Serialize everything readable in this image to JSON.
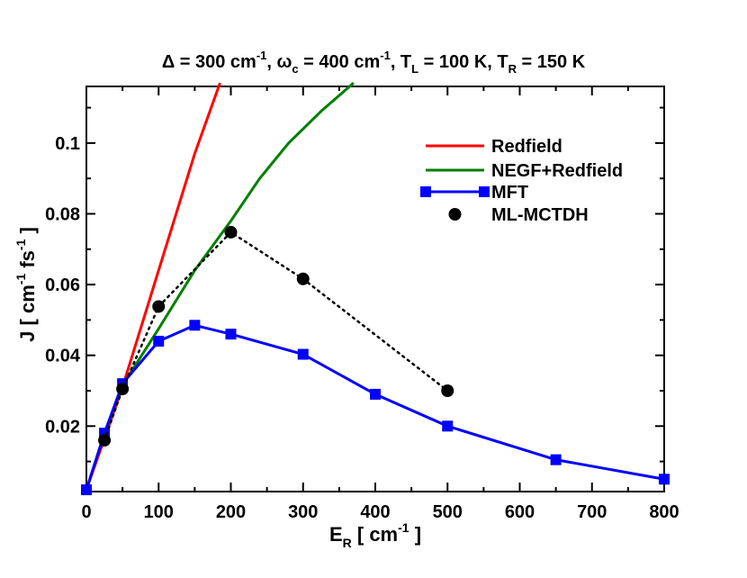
{
  "chart_data": {
    "type": "line",
    "title": {
      "delta": "Δ = 300 cm",
      "delta_exp": "-1",
      "omega": ", ω",
      "omega_sub": "c",
      "omega_val": " = 400 cm",
      "omega_exp": "-1",
      "tl": ", T",
      "tl_sub": "L",
      "tl_val": " = 100 K, T",
      "tr_sub": "R",
      "tr_val": " = 150 K"
    },
    "xlabel": {
      "base": "E",
      "sub": "R",
      "mid": " [ cm",
      "exp": "-1",
      "end": " ]"
    },
    "ylabel": {
      "base": "J [ cm",
      "exp1": "-1",
      "mid": " fs",
      "exp2": "-1",
      "end": " ]"
    },
    "xlim": [
      0,
      800
    ],
    "ylim": [
      0.0015,
      0.116
    ],
    "xticks": [
      "0",
      "100",
      "200",
      "300",
      "400",
      "500",
      "600",
      "700",
      "800"
    ],
    "yticks": [
      "0.02",
      "0.04",
      "0.06",
      "0.08",
      "0.1"
    ],
    "legend_position": "top-right",
    "series": [
      {
        "name": "Redfield",
        "color": "#ff0000",
        "style": "solid",
        "x": [
          0,
          50,
          100,
          150,
          185
        ],
        "y": [
          0.002,
          0.031,
          0.064,
          0.097,
          0.117
        ]
      },
      {
        "name": "NEGF+Redfield",
        "color": "#008000",
        "style": "solid",
        "x": [
          0,
          25,
          50,
          100,
          150,
          200,
          240,
          280,
          325,
          370
        ],
        "y": [
          0.002,
          0.018,
          0.0315,
          0.0475,
          0.064,
          0.078,
          0.09,
          0.1,
          0.109,
          0.117
        ]
      },
      {
        "name": "MFT",
        "color": "#0000ff",
        "style": "solid-square",
        "x": [
          0,
          25,
          50,
          100,
          150,
          200,
          300,
          400,
          500,
          650,
          800
        ],
        "y": [
          0.002,
          0.018,
          0.032,
          0.044,
          0.0485,
          0.046,
          0.0403,
          0.029,
          0.02,
          0.0105,
          0.005
        ]
      },
      {
        "name": "ML-MCTDH",
        "color": "#000000",
        "style": "dotted-circle",
        "x": [
          25,
          50,
          100,
          200,
          300,
          500
        ],
        "y": [
          0.016,
          0.0305,
          0.0538,
          0.0748,
          0.0616,
          0.03
        ]
      }
    ]
  }
}
